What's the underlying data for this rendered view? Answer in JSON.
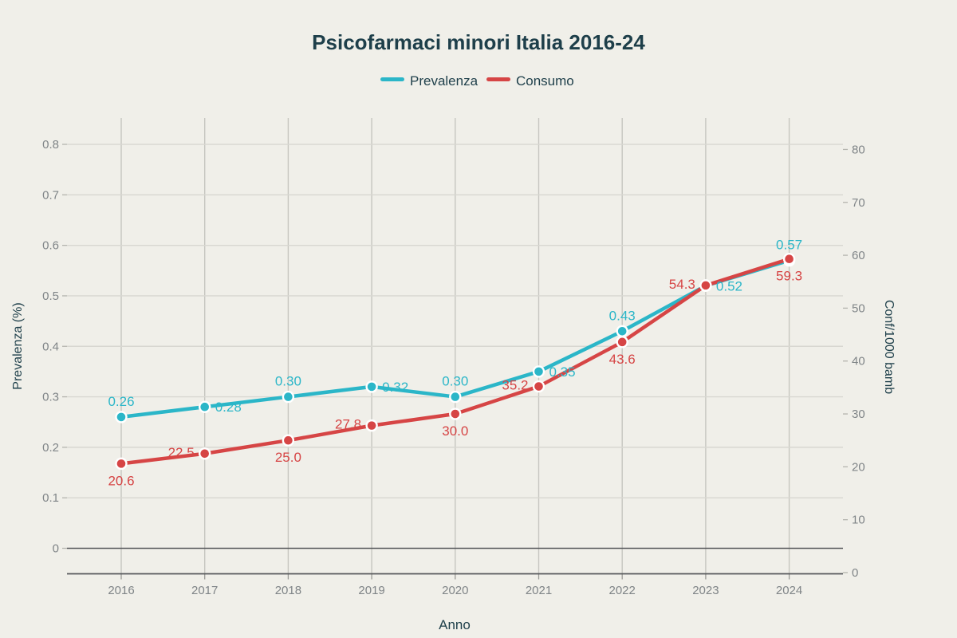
{
  "title": "Psicofarmaci minori Italia 2016-24",
  "legend": [
    {
      "label": "Prevalenza",
      "color": "#2bb6c8"
    },
    {
      "label": "Consumo",
      "color": "#d64545"
    }
  ],
  "colors": {
    "background": "#f0efe9",
    "grid_vertical": "#c6c6c0",
    "grid_horizontal": "#d8d7d1",
    "axis_dark": "#55575a",
    "tick_text": "#7f8487",
    "heading_text": "#1e3f4a",
    "prevalenza": "#2bb6c8",
    "consumo": "#d64545"
  },
  "chart_data": {
    "type": "line",
    "title": "Psicofarmaci minori Italia 2016-24",
    "x": [
      2016,
      2017,
      2018,
      2019,
      2020,
      2021,
      2022,
      2023,
      2024
    ],
    "x_tick_labels": [
      "2016",
      "2017",
      "2018",
      "2019",
      "2020",
      "2021",
      "2022",
      "2023",
      "2024"
    ],
    "xlabel": "Anno",
    "grid": true,
    "legend_position": "top-center",
    "left_axis": {
      "label": "Prevalenza (%)",
      "tick_labels": [
        "0",
        "0.1",
        "0.2",
        "0.3",
        "0.4",
        "0.5",
        "0.6",
        "0.7",
        "0.8"
      ],
      "tick_values": [
        0,
        0.1,
        0.2,
        0.3,
        0.4,
        0.5,
        0.6,
        0.7,
        0.8
      ],
      "range": [
        0,
        0.8
      ]
    },
    "right_axis": {
      "label": "Conf/1000 bamb",
      "tick_labels": [
        "0",
        "10",
        "20",
        "30",
        "40",
        "50",
        "60",
        "70",
        "80"
      ],
      "tick_values": [
        0,
        10,
        20,
        30,
        40,
        50,
        60,
        70,
        80
      ],
      "range": [
        0,
        80
      ]
    },
    "series": [
      {
        "name": "Prevalenza",
        "axis": "left",
        "color": "#2bb6c8",
        "values": [
          0.26,
          0.28,
          0.3,
          0.32,
          0.3,
          0.35,
          0.43,
          0.52,
          0.57
        ],
        "point_labels": [
          "0.26",
          "0.28",
          "0.30",
          "0.32",
          "0.30",
          "0.35",
          "0.43",
          "0.52",
          "0.57"
        ],
        "label_positions": [
          "above",
          "right",
          "above",
          "right",
          "above",
          "right",
          "above",
          "right",
          "above"
        ]
      },
      {
        "name": "Consumo",
        "axis": "right",
        "color": "#d64545",
        "values": [
          20.6,
          22.5,
          25.0,
          27.8,
          30.0,
          35.2,
          43.6,
          54.3,
          59.3
        ],
        "point_labels": [
          "20.6",
          "22.5",
          "25.0",
          "27.8",
          "30.0",
          "35.2",
          "43.6",
          "54.3",
          "59.3"
        ],
        "label_positions": [
          "below",
          "left",
          "below",
          "left",
          "below",
          "left",
          "below",
          "left",
          "below"
        ]
      }
    ]
  }
}
